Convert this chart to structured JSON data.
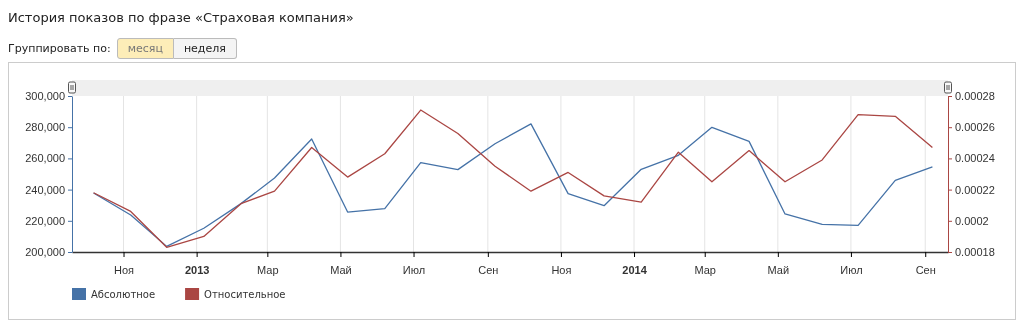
{
  "chart_data": {
    "type": "line",
    "title": "История показов по фразе «Страховая компания»",
    "annotations": [
      "Группировать по:",
      "месяц",
      "неделя"
    ],
    "x": [
      "2012-10-07",
      "2012-11-07",
      "2012-12-07",
      "2013-01-07",
      "2013-02-07",
      "2013-03-07",
      "2013-04-07",
      "2013-05-07",
      "2013-06-07",
      "2013-07-07",
      "2013-08-07",
      "2013-09-07",
      "2013-10-07",
      "2013-11-07",
      "2013-12-07",
      "2014-01-07",
      "2014-02-07",
      "2014-03-07",
      "2014-04-07",
      "2014-05-07",
      "2014-06-07",
      "2014-07-07",
      "2014-08-07",
      "2014-09-07"
    ],
    "series": [
      {
        "name": "Абсолютное",
        "color": "#4572a7",
        "values": [
          237800,
          223700,
          203600,
          215200,
          231000,
          247400,
          272400,
          225600,
          227800,
          257300,
          252800,
          269400,
          282100,
          237400,
          229700,
          253000,
          262000,
          279900,
          270900,
          224400,
          217700,
          217100,
          245900,
          254500
        ]
      },
      {
        "name": "Относительное",
        "color": "#aa4643",
        "axis": "y2",
        "values": [
          0.000218,
          0.000206,
          0.000183,
          0.00019,
          0.000211,
          0.000219,
          0.000247,
          0.000228,
          0.000243,
          0.000271,
          0.000256,
          0.000235,
          0.000219,
          0.000231,
          0.000216,
          0.000212,
          0.000244,
          0.000225,
          0.000245,
          0.000225,
          0.000239,
          0.000268,
          0.000267,
          0.000247
        ]
      }
    ],
    "xlim": [
      "2012-09-19",
      "2014-09-20"
    ],
    "xticks": [
      {
        "value": "2012-11-01",
        "label": "Ноя"
      },
      {
        "value": "2013-01-01",
        "label": "2013"
      },
      {
        "value": "2013-03-01",
        "label": "Мар"
      },
      {
        "value": "2013-05-01",
        "label": "Май"
      },
      {
        "value": "2013-07-01",
        "label": "Июл"
      },
      {
        "value": "2013-09-01",
        "label": "Сен"
      },
      {
        "value": "2013-11-01",
        "label": "Ноя"
      },
      {
        "value": "2014-01-01",
        "label": "2014"
      },
      {
        "value": "2014-03-01",
        "label": "Мар"
      },
      {
        "value": "2014-05-01",
        "label": "Май"
      },
      {
        "value": "2014-07-01",
        "label": "Июл"
      },
      {
        "value": "2014-09-01",
        "label": "Сен"
      }
    ],
    "ylim": [
      200000,
      300000
    ],
    "yticks": [
      {
        "value": 200000,
        "label": "200,000"
      },
      {
        "value": 220000,
        "label": "220,000"
      },
      {
        "value": 240000,
        "label": "240,000"
      },
      {
        "value": 260000,
        "label": "260,000"
      },
      {
        "value": 280000,
        "label": "280,000"
      },
      {
        "value": 300000,
        "label": "300,000"
      }
    ],
    "y2lim": [
      0.00018,
      0.00028
    ],
    "y2ticks": [
      0.00018,
      0.0002,
      0.00022,
      0.00024,
      0.00026,
      0.00028
    ],
    "grid": "x",
    "legend": "bottom left",
    "marker": "none",
    "line_style": "solid"
  }
}
